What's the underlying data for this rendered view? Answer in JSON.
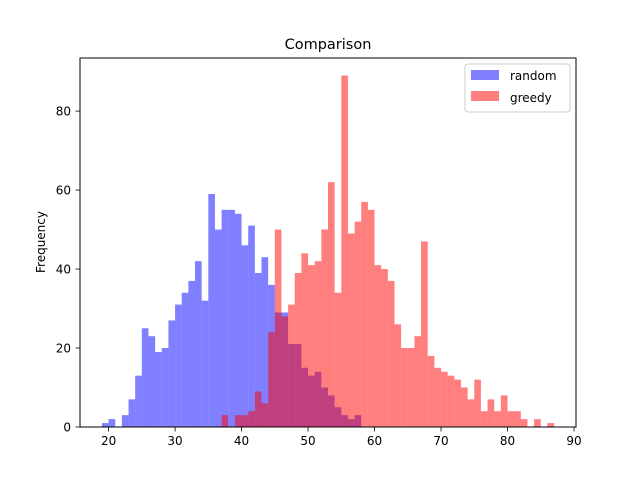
{
  "chart_data": {
    "type": "histogram",
    "title": "Comparison",
    "xlabel": "",
    "ylabel": "Frequency",
    "xlim": [
      15.7,
      90.3
    ],
    "ylim": [
      0,
      93.45
    ],
    "x_ticks": [
      20,
      30,
      40,
      50,
      60,
      70,
      80,
      90
    ],
    "y_ticks": [
      0,
      20,
      40,
      60,
      80
    ],
    "legend_position": "top-right",
    "grid": false,
    "bin_width": 1,
    "series": [
      {
        "name": "random",
        "color": "#0000ff",
        "alpha": 0.5,
        "bin_start": 19,
        "counts": [
          1,
          2,
          0,
          3,
          7,
          13,
          25,
          23,
          19,
          20,
          27,
          31,
          34,
          37,
          42,
          32,
          59,
          50,
          55,
          55,
          54,
          46,
          51,
          39,
          43,
          36,
          29,
          29,
          21,
          21,
          15,
          13,
          14,
          10,
          8,
          5,
          3,
          2,
          3
        ]
      },
      {
        "name": "greedy",
        "color": "#ff0000",
        "alpha": 0.5,
        "bin_start": 37,
        "counts": [
          3,
          0,
          3,
          3,
          4,
          9,
          6,
          24,
          50,
          28,
          31,
          39,
          44,
          41,
          42,
          50,
          62,
          34,
          89,
          49,
          52,
          57,
          55,
          41,
          40,
          37,
          26,
          20,
          20,
          23,
          47,
          18,
          15,
          14,
          13,
          12,
          10,
          7,
          12,
          4,
          7,
          4,
          8,
          4,
          4,
          2,
          0,
          2,
          0,
          1
        ]
      }
    ]
  }
}
